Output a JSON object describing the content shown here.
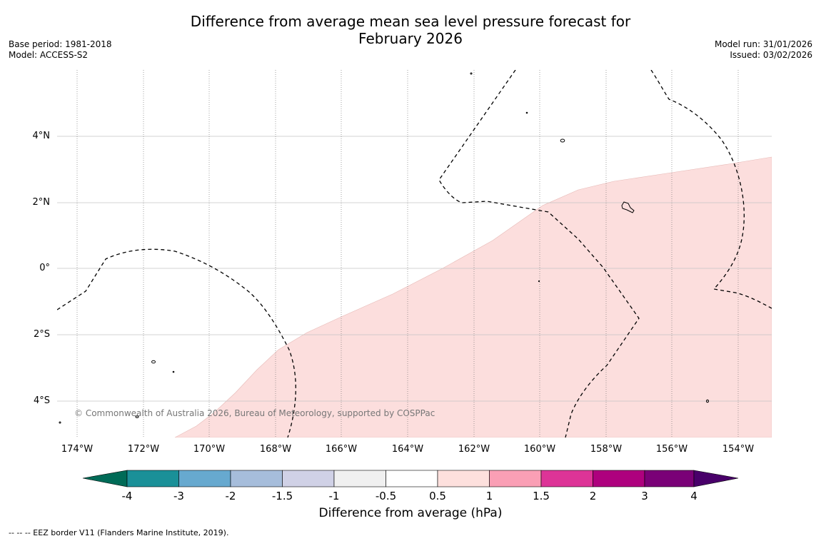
{
  "header": {
    "title_line1": "Difference from average mean sea level pressure forecast for",
    "title_line2": "February 2026",
    "base_period": "Base period: 1981-2018",
    "model": "Model: ACCESS-S2",
    "model_run": "Model run: 31/01/2026",
    "issued": "Issued: 03/02/2026"
  },
  "map": {
    "lat_labels": [
      "4°N",
      "2°N",
      "0°",
      "2°S",
      "4°S"
    ],
    "lon_labels": [
      "174°W",
      "172°W",
      "170°W",
      "168°W",
      "166°W",
      "164°W",
      "162°W",
      "160°W",
      "158°W",
      "156°W",
      "154°W"
    ],
    "copyright": "© Commonwealth of Australia 2026, Bureau of Meteorology, supported by COSPPac",
    "anomaly_fill_color": "#fcdedd"
  },
  "colorbar": {
    "tick_labels": [
      "-4",
      "-3",
      "-2",
      "-1.5",
      "-1",
      "-0.5",
      "0.5",
      "1",
      "1.5",
      "2",
      "3",
      "4"
    ],
    "colors": [
      "#006b57",
      "#1a9098",
      "#67a9cf",
      "#a6bddb",
      "#d0d1e6",
      "#f0f0f0",
      "#ffffff",
      "#fde0dd",
      "#fa9fb5",
      "#dd3497",
      "#ae017e",
      "#7a0177",
      "#49006a"
    ],
    "title": "Difference from average (hPa)"
  },
  "footer": {
    "eez_note": "--  --  -- EEZ border V11 (Flanders Marine Institute, 2019)."
  }
}
